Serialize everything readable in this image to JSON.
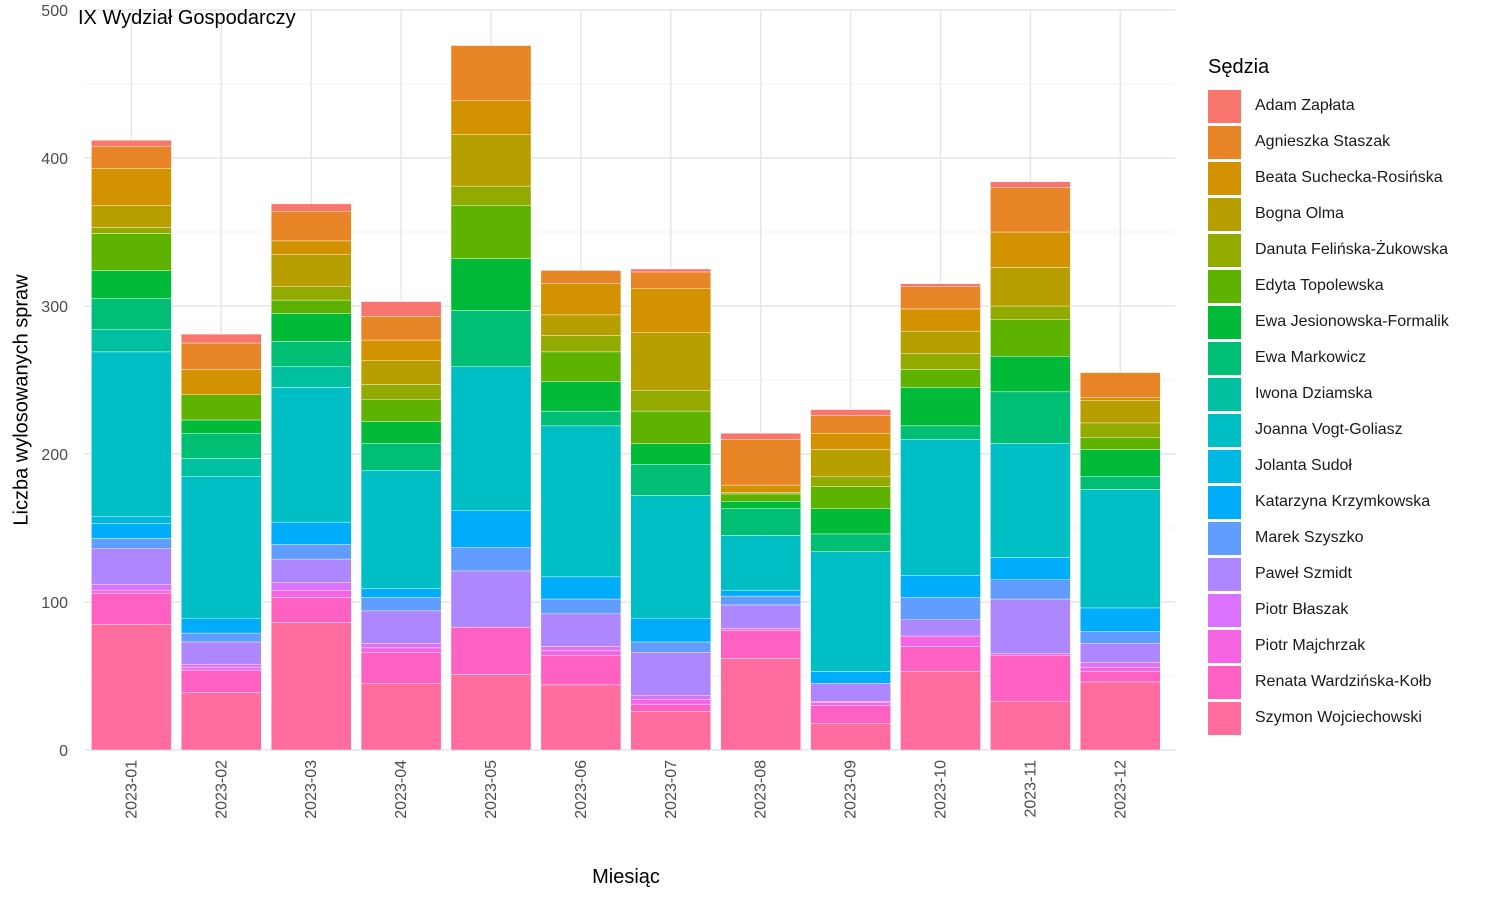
{
  "chart_data": {
    "type": "bar",
    "stacked": true,
    "title": "IX Wydział Gospodarczy",
    "xlabel": "Miesiąc",
    "ylabel": "Liczba wylosowanych spraw",
    "ylim": [
      0,
      500
    ],
    "yticks": [
      0,
      100,
      200,
      300,
      400,
      500
    ],
    "grid": true,
    "legend_title": "Sędzia",
    "legend_position": "right",
    "categories": [
      "2023-01",
      "2023-02",
      "2023-03",
      "2023-04",
      "2023-05",
      "2023-06",
      "2023-07",
      "2023-08",
      "2023-09",
      "2023-10",
      "2023-11",
      "2023-12"
    ],
    "series": [
      {
        "name": "Adam Zapłata",
        "color": "#F8766D",
        "values": [
          4,
          6,
          5,
          10,
          0,
          0,
          2,
          4,
          4,
          2,
          4,
          0
        ]
      },
      {
        "name": "Agnieszka Staszak",
        "color": "#E58700",
        "values": [
          15,
          18,
          20,
          16,
          37,
          9,
          11,
          31,
          12,
          15,
          30,
          17
        ]
      },
      {
        "name": "Beata Suchecka-Rosińska",
        "color": "#C99800",
        "values": [
          25,
          17,
          9,
          14,
          23,
          21,
          30,
          5,
          11,
          15,
          24,
          2
        ]
      },
      {
        "name": "Bogna Olma",
        "color": "#A3A500",
        "values": [
          15,
          0,
          22,
          16,
          35,
          14,
          39,
          0,
          18,
          15,
          26,
          15
        ]
      },
      {
        "name": "Danuta Felińska-Żukowska",
        "color": "#6BB100",
        "values": [
          4,
          0,
          9,
          10,
          13,
          11,
          14,
          1,
          7,
          11,
          9,
          10
        ]
      },
      {
        "name": "Edyta Topolewska",
        "color": "#00BA38",
        "values": [
          25,
          17,
          9,
          15,
          36,
          20,
          22,
          5,
          15,
          12,
          25,
          8
        ]
      },
      {
        "name": "Ewa Jesionowska-Formalik",
        "color": "#00BF7D",
        "values": [
          19,
          9,
          19,
          15,
          35,
          20,
          14,
          5,
          17,
          26,
          24,
          18
        ]
      },
      {
        "name": "Ewa Markowicz",
        "color": "#00C0AF",
        "values": [
          21,
          17,
          17,
          18,
          38,
          10,
          21,
          18,
          12,
          9,
          35,
          9
        ]
      },
      {
        "name": "Iwona Dziamska",
        "color": "#00BCD8",
        "values": [
          15,
          12,
          14,
          0,
          0,
          0,
          0,
          0,
          0,
          0,
          0,
          0
        ]
      },
      {
        "name": "Joanna Vogt-Goliasz",
        "color": "#00B0F6",
        "values": [
          111,
          96,
          91,
          80,
          97,
          102,
          83,
          37,
          81,
          92,
          77,
          80
        ]
      },
      {
        "name": "Jolanta Sudoł",
        "color": "#619CFF",
        "values": [
          5,
          0,
          0,
          0,
          0,
          0,
          0,
          0,
          0,
          0,
          0,
          0
        ]
      },
      {
        "name": "Katarzyna Krzymkowska",
        "color": "#B983FF",
        "values": [
          10,
          10,
          15,
          6,
          25,
          15,
          16,
          4,
          8,
          15,
          15,
          16
        ]
      },
      {
        "name": "Marek Szyszko",
        "color": "#E76BF3",
        "values": [
          7,
          6,
          10,
          9,
          16,
          10,
          7,
          6,
          0,
          15,
          13,
          8
        ]
      },
      {
        "name": "Paweł Szmidt",
        "color": "#FD61D1",
        "values": [
          24,
          15,
          16,
          22,
          38,
          22,
          29,
          16,
          12,
          11,
          37,
          13
        ]
      },
      {
        "name": "Piotr Błaszak",
        "color": "#FF67A4",
        "values": [
          4,
          2,
          5,
          3,
          0,
          3,
          3,
          0,
          1,
          0,
          0,
          3
        ]
      },
      {
        "name": "Piotr Majchrzak",
        "color": "#F8766D",
        "values": [
          2,
          2,
          5,
          3,
          0,
          3,
          3,
          1,
          2,
          7,
          1,
          3
        ]
      },
      {
        "name": "Renata Wardzińska-Kołb",
        "color": "#FB61D7",
        "values": [
          21,
          15,
          17,
          21,
          32,
          20,
          5,
          19,
          12,
          17,
          31,
          7
        ]
      },
      {
        "name": "Szymon Wojciechowski",
        "color": "#FF6C9D",
        "values": [
          85,
          39,
          86,
          45,
          51,
          44,
          26,
          62,
          18,
          53,
          33,
          46
        ]
      }
    ],
    "legend_swatches": [
      "#F8766D",
      "#E88526",
      "#D39200",
      "#B79F00",
      "#93AA00",
      "#5EB300",
      "#00BA38",
      "#00BF74",
      "#00C19F",
      "#00BFC4",
      "#00B9E3",
      "#00ADFA",
      "#619CFF",
      "#AE87FF",
      "#DB72FB",
      "#F564E3",
      "#FF61C3",
      "#FF6C9D"
    ],
    "stack_colors": [
      "#F8766D",
      "#E88526",
      "#D39200",
      "#B79F00",
      "#93AA00",
      "#5EB300",
      "#00BA38",
      "#00BF74",
      "#00C19F",
      "#00BFC4",
      "#00B9E3",
      "#00ADFA",
      "#619CFF",
      "#AE87FF",
      "#DB72FB",
      "#F564E3",
      "#FF61C3",
      "#FF6C9D"
    ]
  }
}
